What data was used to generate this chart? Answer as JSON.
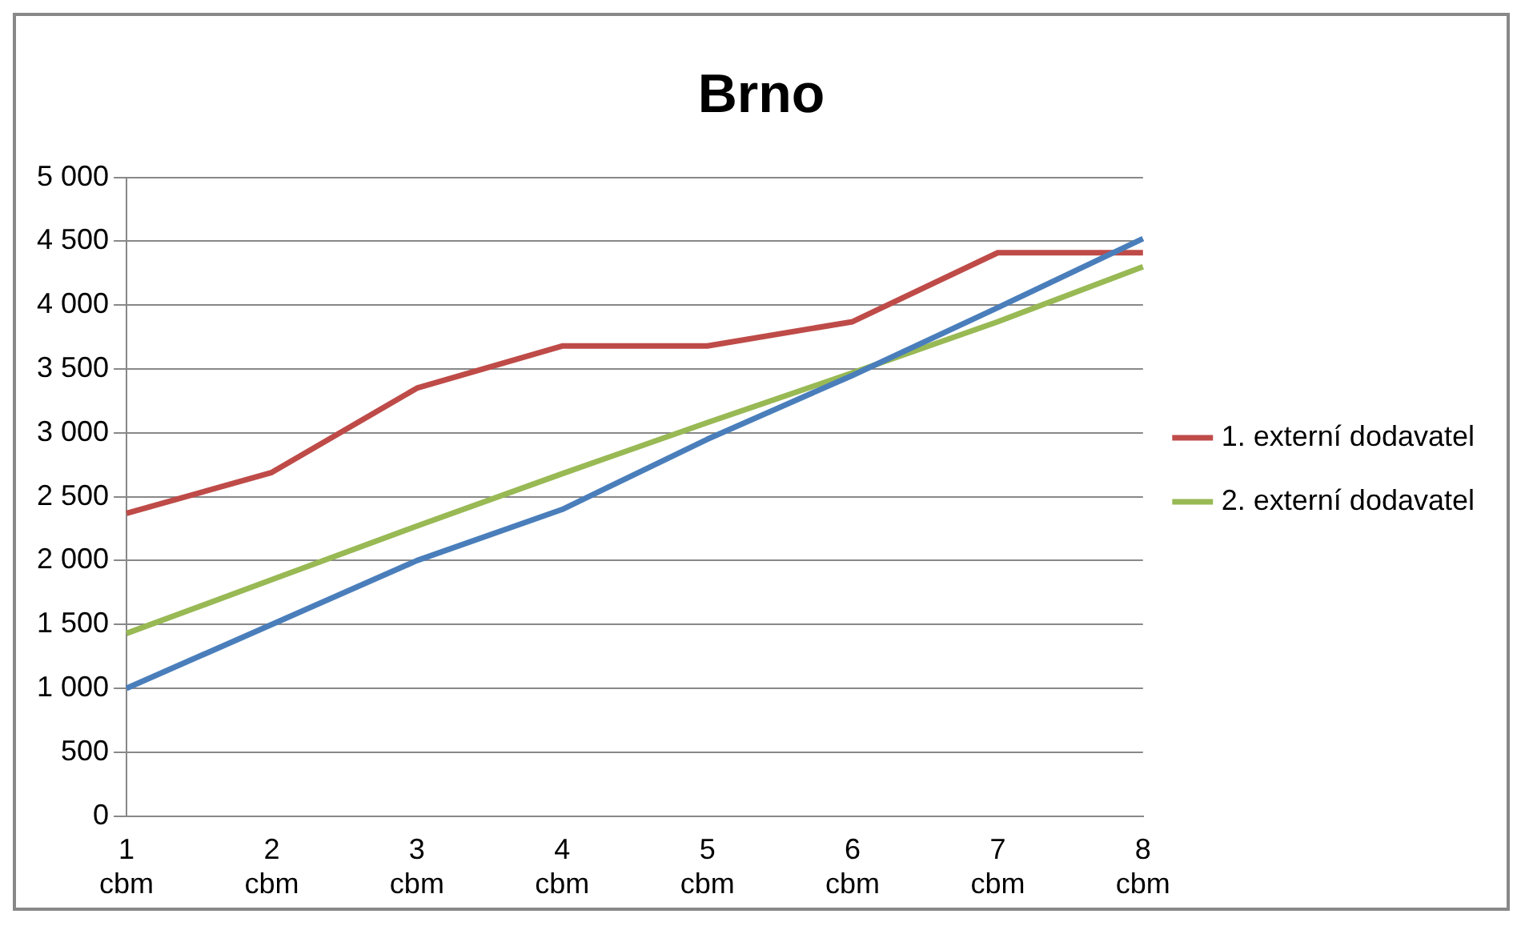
{
  "chart_data": {
    "type": "line",
    "title": "Brno",
    "categories": [
      "1 cbm",
      "2 cbm",
      "3 cbm",
      "4 cbm",
      "5 cbm",
      "6 cbm",
      "7 cbm",
      "8 cbm"
    ],
    "series": [
      {
        "color": "#4a7ebb",
        "values": [
          1000,
          1500,
          2000,
          2400,
          2950,
          3450,
          3980,
          4520
        ]
      },
      {
        "name": "1. externí dodavatel",
        "color": "#be4b48",
        "values": [
          2370,
          2690,
          3350,
          3680,
          3680,
          3870,
          4410,
          4410
        ]
      },
      {
        "name": "2. externí dodavatel",
        "color": "#98b954",
        "values": [
          1430,
          1850,
          2270,
          2680,
          3080,
          3470,
          3870,
          4300
        ]
      }
    ],
    "ylim": [
      0,
      5000
    ],
    "yticks": [
      {
        "value": 0,
        "label": "0"
      },
      {
        "value": 500,
        "label": "500"
      },
      {
        "value": 1000,
        "label": "1 000"
      },
      {
        "value": 1500,
        "label": "1 500"
      },
      {
        "value": 2000,
        "label": "2 000"
      },
      {
        "value": 2500,
        "label": "2 500"
      },
      {
        "value": 3000,
        "label": "3 000"
      },
      {
        "value": 3500,
        "label": "3 500"
      },
      {
        "value": 4000,
        "label": "4 000"
      },
      {
        "value": 4500,
        "label": "4 500"
      },
      {
        "value": 5000,
        "label": "5 000"
      }
    ],
    "grid": "y",
    "legend": "right",
    "marker": "none",
    "line_style": "solid"
  }
}
